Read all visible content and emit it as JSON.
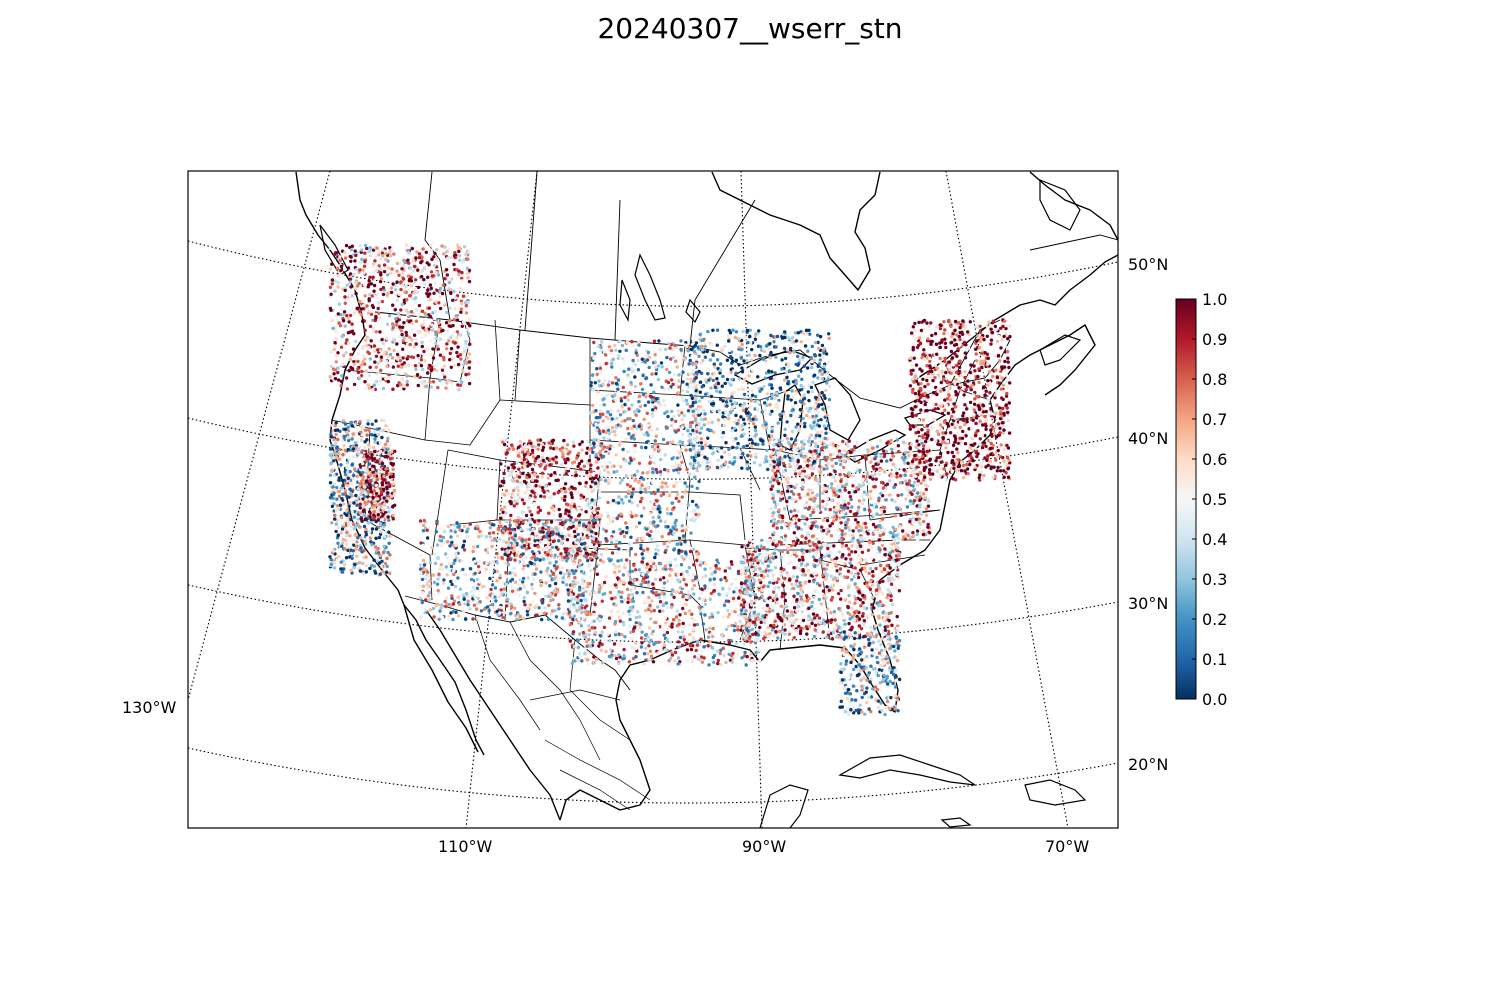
{
  "title": "20240307__wserr_stn",
  "map": {
    "projection": "lambert-conformal",
    "longitude_labels": [
      "130°W",
      "110°W",
      "90°W",
      "70°W"
    ],
    "latitude_labels": [
      "50°N",
      "40°N",
      "30°N",
      "20°N"
    ],
    "graticule_style": "dotted",
    "coastline_color": "#000000",
    "border_color": "#000000"
  },
  "colorbar": {
    "colormap": "RdBu_r",
    "min": 0.0,
    "max": 1.0,
    "tick_labels": [
      "0.0",
      "0.1",
      "0.2",
      "0.3",
      "0.4",
      "0.5",
      "0.6",
      "0.7",
      "0.8",
      "0.9",
      "1.0"
    ],
    "colors": [
      "#053061",
      "#2166ac",
      "#4393c3",
      "#92c5de",
      "#d1e5f0",
      "#f7f7f7",
      "#fddbc7",
      "#f4a582",
      "#d6604d",
      "#b2182b",
      "#67001f"
    ]
  },
  "station_clusters": [
    {
      "region": "pacific-northwest",
      "mean_value": 0.7
    },
    {
      "region": "california-coast",
      "mean_value": 0.35
    },
    {
      "region": "central-valley",
      "mean_value": 0.85
    },
    {
      "region": "colorado-rockies",
      "mean_value": 0.8
    },
    {
      "region": "great-plains",
      "mean_value": 0.45
    },
    {
      "region": "upper-midwest",
      "mean_value": 0.3
    },
    {
      "region": "ohio-valley",
      "mean_value": 0.6
    },
    {
      "region": "northeast",
      "mean_value": 0.85
    },
    {
      "region": "southeast",
      "mean_value": 0.65
    },
    {
      "region": "texas",
      "mean_value": 0.55
    },
    {
      "region": "florida",
      "mean_value": 0.35
    },
    {
      "region": "southwest",
      "mean_value": 0.45
    }
  ]
}
